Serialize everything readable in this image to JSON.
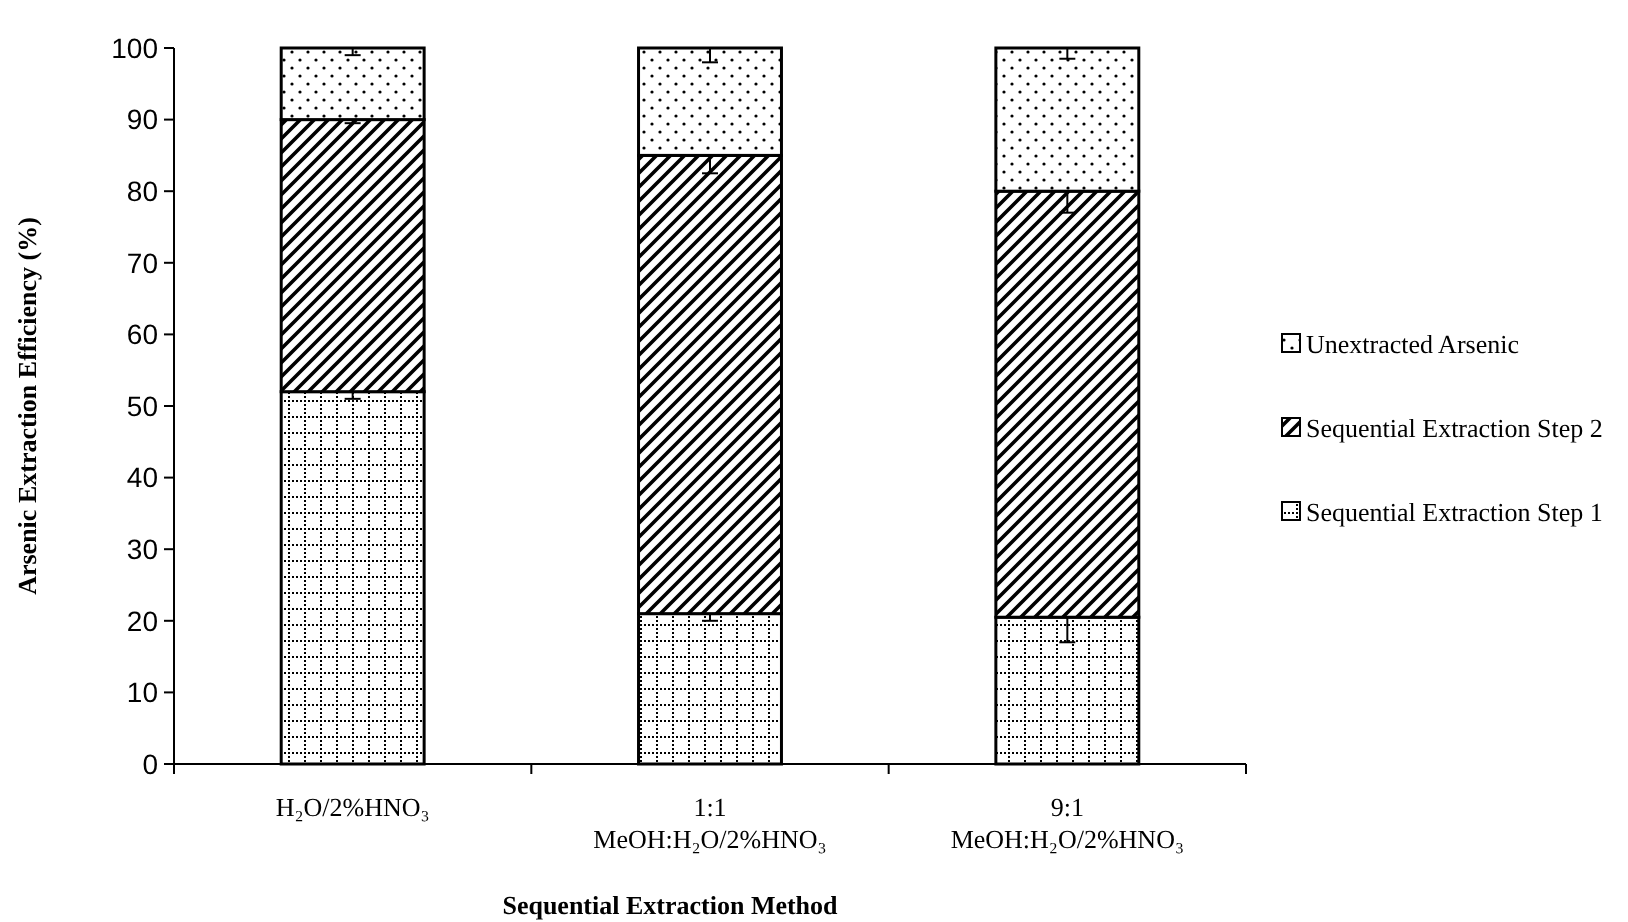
{
  "chart_data": {
    "type": "bar",
    "stacked": true,
    "xlabel": "Sequential Extraction Method",
    "ylabel": "Arsenic Extraction Efficiency (%)",
    "categories": [
      "H₂O/2%HNO₃",
      "1:1\nMeOH:H₂O/2%HNO₃",
      "9:1\nMeOH:H₂O/2%HNO₃"
    ],
    "series": [
      {
        "name": "Sequential Extraction Step 1",
        "color": "#000000",
        "values": [
          52,
          21,
          20.5
        ],
        "errors": [
          1,
          1,
          3.5
        ]
      },
      {
        "name": "Sequential Extraction Step 2",
        "color": "#000000",
        "values": [
          38,
          64,
          59.5
        ],
        "errors": [
          0.5,
          2.5,
          3
        ]
      },
      {
        "name": "Unextracted Arsenic",
        "color": "#000000",
        "values": [
          10,
          15,
          20
        ],
        "errors": [
          [
            99,
            100
          ],
          [
            98,
            100
          ],
          [
            98.5,
            100
          ]
        ]
      }
    ],
    "ylim": [
      0,
      100
    ],
    "yticks": [
      0,
      10,
      20,
      30,
      40,
      50,
      60,
      70,
      80,
      90,
      100
    ],
    "grid": false,
    "legend": "right"
  }
}
